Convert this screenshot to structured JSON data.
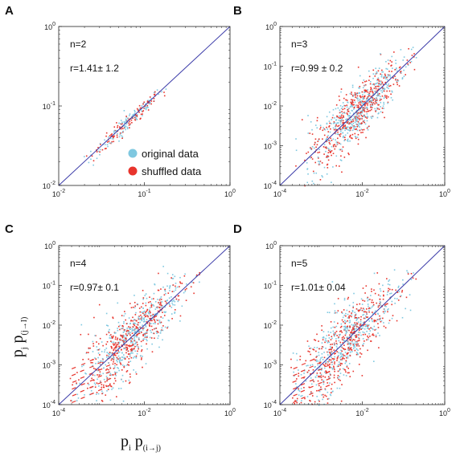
{
  "figure": {
    "ylabel": {
      "main": "p",
      "sub1": "j",
      "main2": " p",
      "sub2": "(j→I)"
    },
    "xlabel": {
      "main": "p",
      "sub1": "i",
      "main2": " p",
      "sub2": "(i→j)"
    }
  },
  "legend": {
    "items": [
      {
        "label": "original data",
        "color": "#7fc8e0"
      },
      {
        "label": "shuffled data",
        "color": "#e8342c"
      }
    ]
  },
  "colors": {
    "diagonal": "#3a3aa8",
    "original": "#7fc8e0",
    "shuffled": "#e8342c"
  },
  "chart_data": [
    {
      "panel": "A",
      "type": "scatter",
      "scale": "log",
      "xlim": [
        0.01,
        1
      ],
      "ylim": [
        0.01,
        1
      ],
      "xticks": [
        -2,
        -1,
        0
      ],
      "yticks": [
        -2,
        -1,
        0
      ],
      "annotations": [
        "n=2",
        "r=1.41± 1.2"
      ],
      "cloud": {
        "center_log": -1.2,
        "spread_log": 0.35,
        "scatter_log": 0.05
      }
    },
    {
      "panel": "B",
      "type": "scatter",
      "scale": "log",
      "xlim": [
        0.0001,
        1
      ],
      "ylim": [
        0.0001,
        1
      ],
      "xticks": [
        -4,
        -2,
        0
      ],
      "yticks": [
        -4,
        -3,
        -2,
        -1,
        0
      ],
      "annotations": [
        "n=3",
        "r=0.99 ± 0.2"
      ],
      "cloud": {
        "center_log": -2.2,
        "spread_log": 0.9,
        "scatter_log": 0.35
      }
    },
    {
      "panel": "C",
      "type": "scatter",
      "scale": "log",
      "xlim": [
        0.0001,
        1
      ],
      "ylim": [
        0.0001,
        1
      ],
      "xticks": [
        -4,
        -2,
        0
      ],
      "yticks": [
        -4,
        -3,
        -2,
        -1,
        0
      ],
      "annotations": [
        "n=4",
        "r=0.97± 0.1"
      ],
      "cloud": {
        "center_log": -2.3,
        "spread_log": 1.0,
        "scatter_log": 0.4
      }
    },
    {
      "panel": "D",
      "type": "scatter",
      "scale": "log",
      "xlim": [
        0.0001,
        1
      ],
      "ylim": [
        0.0001,
        1
      ],
      "xticks": [
        -4,
        -2,
        0
      ],
      "yticks": [
        -4,
        -3,
        -2,
        -1,
        0
      ],
      "annotations": [
        "n=5",
        "r=1.01± 0.04"
      ],
      "cloud": {
        "center_log": -2.4,
        "spread_log": 1.0,
        "scatter_log": 0.45
      }
    }
  ]
}
